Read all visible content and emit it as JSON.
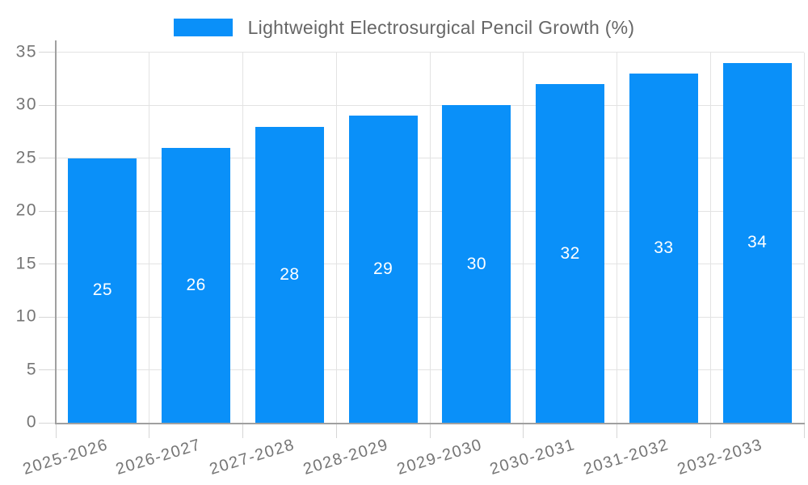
{
  "chart_data": {
    "type": "bar",
    "title": "Lightweight Electrosurgical Pencil Growth (%)",
    "legend": [
      "Lightweight Electrosurgical Pencil Growth (%)"
    ],
    "legend_position": "top-center",
    "categories": [
      "2025-2026",
      "2026-2027",
      "2027-2028",
      "2028-2029",
      "2029-2030",
      "2030-2031",
      "2031-2032",
      "2032-2033"
    ],
    "values": [
      25,
      26,
      28,
      29,
      30,
      32,
      33,
      34
    ],
    "xlabel": "",
    "ylabel": "",
    "ylim": [
      0,
      35
    ],
    "yticks": [
      0,
      5,
      10,
      15,
      20,
      25,
      30,
      35
    ],
    "grid": true,
    "bar_value_labels_shown": true,
    "x_label_rotation_deg": -17,
    "colors": {
      "bar": "#0a90f9",
      "value_label": "#ffffff",
      "axis_text": "#757575",
      "legend_text": "#666666",
      "grid": "#e3e3e3",
      "tick": "#d6d6d6",
      "axis_line": "#a0a0a0"
    }
  }
}
